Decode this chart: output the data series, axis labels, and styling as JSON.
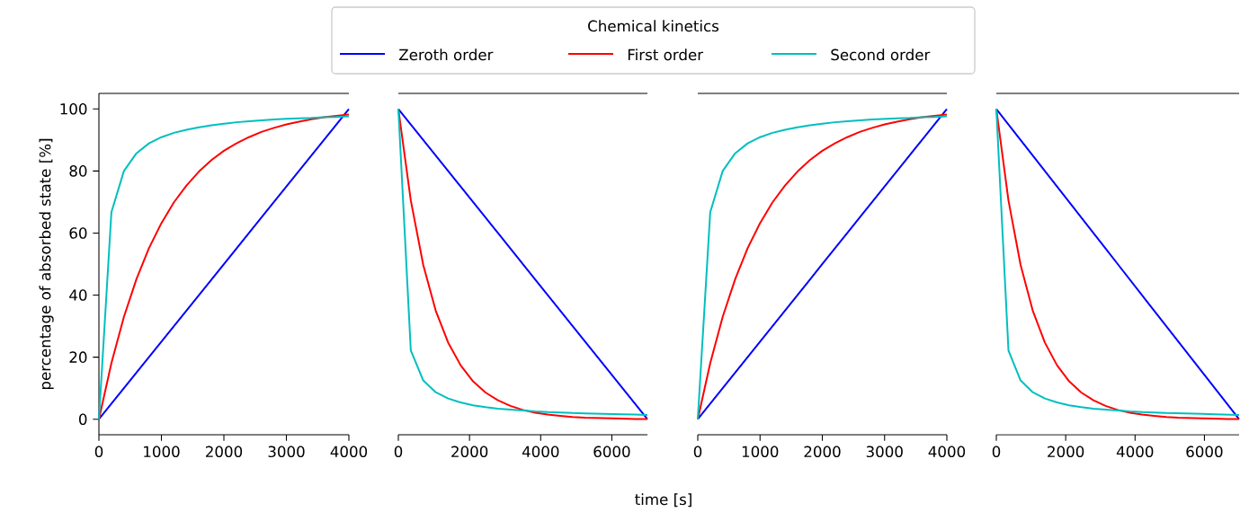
{
  "chart_data": [
    {
      "type": "line",
      "ylabel": "percentage of absorbed state [%]",
      "legend": "top",
      "legend_title": "Chemical kinetics",
      "x": [
        0,
        200,
        400,
        600,
        800,
        1000,
        1200,
        1400,
        1600,
        1800,
        2000,
        2200,
        2400,
        2600,
        2800,
        3000,
        3200,
        3400,
        3600,
        3800,
        4000
      ],
      "xlim": [
        0,
        4000
      ],
      "xticks": [
        0,
        1000,
        2000,
        3000,
        4000
      ],
      "ylim": [
        -5,
        105
      ],
      "yticks": [
        0,
        20,
        40,
        60,
        80,
        100
      ],
      "series": [
        {
          "name": "Zeroth order",
          "color": "#0000ff",
          "values": [
            0,
            5,
            10,
            15,
            20,
            25,
            30,
            35,
            40,
            45,
            50,
            55,
            60,
            65,
            70,
            75,
            80,
            85,
            90,
            95,
            100
          ]
        },
        {
          "name": "First order",
          "color": "#ff0000",
          "values": [
            0,
            18.1,
            33.0,
            45.1,
            55.1,
            63.2,
            69.9,
            75.3,
            79.8,
            83.5,
            86.5,
            88.9,
            90.9,
            92.6,
            93.9,
            95.0,
            95.9,
            96.7,
            97.3,
            97.8,
            98.2
          ]
        },
        {
          "name": "Second order",
          "color": "#00bfbf",
          "values": [
            0,
            66.7,
            80.0,
            85.7,
            88.9,
            90.9,
            92.3,
            93.3,
            94.1,
            94.7,
            95.2,
            95.7,
            96.0,
            96.3,
            96.6,
            96.8,
            97.0,
            97.1,
            97.3,
            97.4,
            97.6
          ]
        }
      ]
    },
    {
      "type": "line",
      "tick_labels": "x",
      "xlabel": "time [s]",
      "x": [
        0,
        350,
        700,
        1050,
        1400,
        1750,
        2100,
        2450,
        2800,
        3150,
        3500,
        3850,
        4200,
        4550,
        4900,
        5250,
        5600,
        5950,
        6300,
        6650,
        7000
      ],
      "xlim": [
        0,
        7000
      ],
      "xticks": [
        0,
        2000,
        4000,
        6000
      ],
      "ylim": [
        -5,
        105
      ],
      "series": [
        {
          "color": "#0000ff",
          "values": [
            100,
            95,
            90,
            85,
            80,
            75,
            70,
            65,
            60,
            55,
            50,
            45,
            40,
            35,
            30,
            25,
            20,
            15,
            10,
            5,
            0
          ]
        },
        {
          "color": "#ff0000",
          "values": [
            100,
            70.5,
            49.7,
            35.0,
            24.7,
            17.4,
            12.2,
            8.6,
            6.1,
            4.3,
            3.0,
            2.1,
            1.5,
            1.1,
            0.7,
            0.5,
            0.4,
            0.3,
            0.2,
            0.1,
            0.1
          ]
        },
        {
          "color": "#00bfbf",
          "values": [
            100,
            22.2,
            12.5,
            8.7,
            6.7,
            5.4,
            4.5,
            3.9,
            3.4,
            3.1,
            2.8,
            2.5,
            2.3,
            2.2,
            2.0,
            1.9,
            1.8,
            1.7,
            1.6,
            1.5,
            1.4
          ]
        }
      ]
    },
    {
      "type": "line",
      "tick_labels": "x",
      "x": [
        0,
        200,
        400,
        600,
        800,
        1000,
        1200,
        1400,
        1600,
        1800,
        2000,
        2200,
        2400,
        2600,
        2800,
        3000,
        3200,
        3400,
        3600,
        3800,
        4000
      ],
      "xlim": [
        0,
        4000
      ],
      "xticks": [
        0,
        1000,
        2000,
        3000,
        4000
      ],
      "ylim": [
        -5,
        105
      ],
      "series": [
        {
          "color": "#0000ff",
          "values": [
            0,
            5,
            10,
            15,
            20,
            25,
            30,
            35,
            40,
            45,
            50,
            55,
            60,
            65,
            70,
            75,
            80,
            85,
            90,
            95,
            100
          ]
        },
        {
          "color": "#ff0000",
          "values": [
            0,
            18.1,
            33.0,
            45.1,
            55.1,
            63.2,
            69.9,
            75.3,
            79.8,
            83.5,
            86.5,
            88.9,
            90.9,
            92.6,
            93.9,
            95.0,
            95.9,
            96.7,
            97.3,
            97.8,
            98.2
          ]
        },
        {
          "color": "#00bfbf",
          "values": [
            0,
            66.7,
            80.0,
            85.7,
            88.9,
            90.9,
            92.3,
            93.3,
            94.1,
            94.7,
            95.2,
            95.7,
            96.0,
            96.3,
            96.6,
            96.8,
            97.0,
            97.1,
            97.3,
            97.4,
            97.6
          ]
        }
      ]
    },
    {
      "type": "line",
      "tick_labels": "x",
      "x": [
        0,
        350,
        700,
        1050,
        1400,
        1750,
        2100,
        2450,
        2800,
        3150,
        3500,
        3850,
        4200,
        4550,
        4900,
        5250,
        5600,
        5950,
        6300,
        6650,
        7000
      ],
      "xlim": [
        0,
        7000
      ],
      "xticks": [
        0,
        2000,
        4000,
        6000
      ],
      "ylim": [
        -5,
        105
      ],
      "series": [
        {
          "color": "#0000ff",
          "values": [
            100,
            95,
            90,
            85,
            80,
            75,
            70,
            65,
            60,
            55,
            50,
            45,
            40,
            35,
            30,
            25,
            20,
            15,
            10,
            5,
            0
          ]
        },
        {
          "color": "#ff0000",
          "values": [
            100,
            70.5,
            49.7,
            35.0,
            24.7,
            17.4,
            12.2,
            8.6,
            6.1,
            4.3,
            3.0,
            2.1,
            1.5,
            1.1,
            0.7,
            0.5,
            0.4,
            0.3,
            0.2,
            0.1,
            0.1
          ]
        },
        {
          "color": "#00bfbf",
          "values": [
            100,
            22.2,
            12.5,
            8.7,
            6.7,
            5.4,
            4.5,
            3.9,
            3.4,
            3.1,
            2.8,
            2.5,
            2.3,
            2.2,
            2.0,
            1.9,
            1.8,
            1.7,
            1.6,
            1.5,
            1.4
          ]
        }
      ]
    }
  ]
}
